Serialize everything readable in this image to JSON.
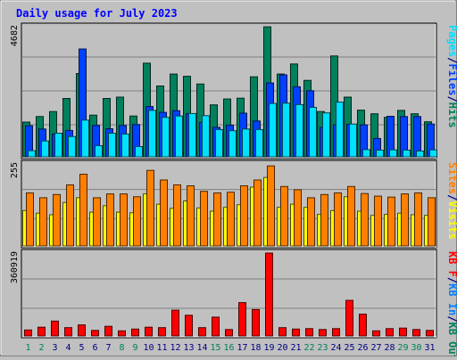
{
  "title": "Daily usage for July 2023",
  "colors": {
    "background": "#c0c0c0",
    "title": "#0000ff",
    "hits": "#00805c",
    "files": "#0040ff",
    "pages": "#00e0ff",
    "visits": "#ffff00",
    "sites": "#ff8000",
    "kbin": "#0080ff",
    "kbout": "#ff8000",
    "kbf": "#ff0000",
    "weekend_day": "#00805c",
    "weekday_day": "#000080",
    "gridline": "#808080"
  },
  "chart_data": [
    {
      "type": "bar",
      "panel": "hits-files-pages",
      "ylabel_max": "4682",
      "right_labels": [
        {
          "text": "Pages",
          "color_key": "pages"
        },
        {
          "text": "Files",
          "color_key": "files"
        },
        {
          "text": "Hits",
          "color_key": "hits"
        }
      ],
      "categories": [
        "1",
        "2",
        "3",
        "4",
        "5",
        "6",
        "7",
        "8",
        "9",
        "10",
        "11",
        "12",
        "13",
        "14",
        "15",
        "16",
        "17",
        "18",
        "19",
        "20",
        "21",
        "22",
        "23",
        "24",
        "25",
        "26",
        "27",
        "28",
        "29",
        "30",
        "31"
      ],
      "ylim": [
        0,
        4682
      ],
      "series": [
        {
          "name": "Hits",
          "color_key": "hits",
          "values": [
            1250,
            1450,
            1630,
            2100,
            3000,
            1500,
            2100,
            2150,
            1470,
            3370,
            2550,
            2980,
            2900,
            2620,
            1870,
            2080,
            2110,
            2880,
            4680,
            2980,
            3340,
            2750,
            1630,
            3630,
            2150,
            1680,
            1550,
            1420,
            1670,
            1550,
            1260
          ]
        },
        {
          "name": "Files",
          "color_key": "files",
          "values": [
            1120,
            1000,
            820,
            950,
            3880,
            1130,
            1010,
            1130,
            1160,
            1810,
            1600,
            1660,
            1550,
            1230,
            1060,
            1140,
            1570,
            1290,
            2660,
            2950,
            2520,
            2380,
            1060,
            1150,
            1170,
            1150,
            660,
            1460,
            1450,
            1450,
            1180
          ]
        },
        {
          "name": "Pages",
          "color_key": "pages",
          "values": [
            220,
            570,
            850,
            730,
            1320,
            400,
            850,
            820,
            370,
            1670,
            1420,
            1470,
            1560,
            1480,
            980,
            940,
            1000,
            980,
            1920,
            1930,
            1880,
            1780,
            1580,
            1970,
            1180,
            260,
            240,
            250,
            240,
            210,
            250
          ]
        }
      ]
    },
    {
      "type": "bar",
      "panel": "visits-sites",
      "ylabel_max": "255",
      "right_labels": [
        {
          "text": "Sites",
          "color_key": "sites"
        },
        {
          "text": "Visits",
          "color_key": "visits"
        }
      ],
      "categories": [
        "1",
        "2",
        "3",
        "4",
        "5",
        "6",
        "7",
        "8",
        "9",
        "10",
        "11",
        "12",
        "13",
        "14",
        "15",
        "16",
        "17",
        "18",
        "19",
        "20",
        "21",
        "22",
        "23",
        "24",
        "25",
        "26",
        "27",
        "28",
        "29",
        "30",
        "31"
      ],
      "ylim": [
        0,
        255
      ],
      "series": [
        {
          "name": "Visits",
          "color_key": "visits",
          "values": [
            110,
            102,
            97,
            135,
            150,
            105,
            125,
            105,
            103,
            162,
            130,
            117,
            140,
            118,
            108,
            120,
            128,
            183,
            213,
            120,
            130,
            120,
            98,
            110,
            153,
            108,
            95,
            98,
            102,
            97,
            95
          ]
        },
        {
          "name": "Sites",
          "color_key": "sites",
          "values": [
            165,
            150,
            160,
            190,
            223,
            150,
            162,
            162,
            153,
            235,
            205,
            190,
            187,
            170,
            165,
            167,
            187,
            205,
            249,
            185,
            175,
            150,
            160,
            165,
            185,
            163,
            155,
            152,
            162,
            165,
            150
          ]
        }
      ]
    },
    {
      "type": "bar",
      "panel": "kbytes",
      "ylabel_max": "360919",
      "right_labels": [
        {
          "text": "KB F",
          "color_key": "kbf"
        },
        {
          "text": "/",
          "color_key": "weekday_day"
        },
        {
          "text": "KB In",
          "color_key": "kbin"
        },
        {
          "text": "/",
          "color_key": "weekday_day"
        },
        {
          "text": "KB Out",
          "color_key": "hits"
        }
      ],
      "categories": [
        "1",
        "2",
        "3",
        "4",
        "5",
        "6",
        "7",
        "8",
        "9",
        "10",
        "11",
        "12",
        "13",
        "14",
        "15",
        "16",
        "17",
        "18",
        "19",
        "20",
        "21",
        "22",
        "23",
        "24",
        "25",
        "26",
        "27",
        "28",
        "29",
        "30",
        "31"
      ],
      "ylim": [
        0,
        360919
      ],
      "series": [
        {
          "name": "KB F",
          "color_key": "kbf",
          "values": [
            26000,
            38000,
            65000,
            36000,
            48000,
            24000,
            42000,
            22000,
            30000,
            38000,
            36000,
            112000,
            90000,
            36000,
            82000,
            28000,
            145000,
            115000,
            360919,
            36000,
            30000,
            32000,
            28000,
            32000,
            155000,
            95000,
            22000,
            32000,
            34000,
            28000,
            24000
          ]
        }
      ]
    }
  ],
  "days": [
    "1",
    "2",
    "3",
    "4",
    "5",
    "6",
    "7",
    "8",
    "9",
    "10",
    "11",
    "12",
    "13",
    "14",
    "15",
    "16",
    "17",
    "18",
    "19",
    "20",
    "21",
    "22",
    "23",
    "24",
    "25",
    "26",
    "27",
    "28",
    "29",
    "30",
    "31"
  ],
  "weekend_days": [
    "1",
    "2",
    "8",
    "9",
    "15",
    "16",
    "22",
    "23",
    "29",
    "30"
  ]
}
